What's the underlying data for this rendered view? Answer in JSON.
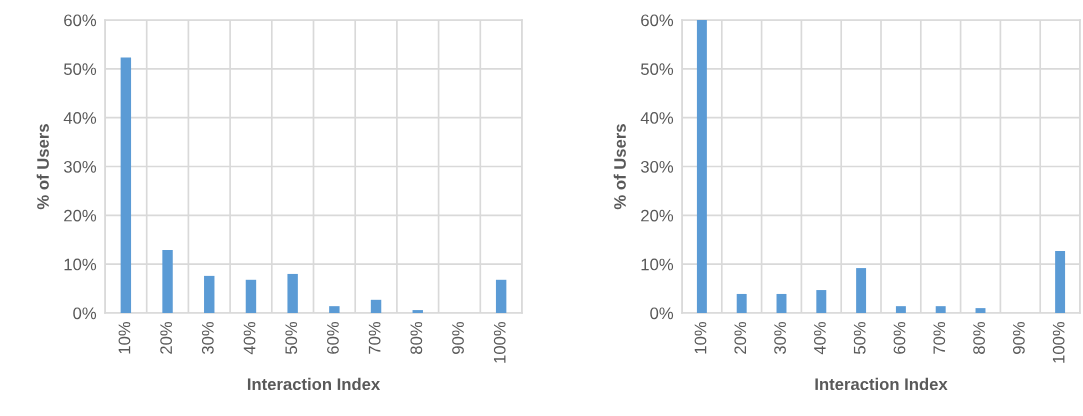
{
  "chart_data": [
    {
      "type": "bar",
      "xlabel": "Interaction Index",
      "ylabel": "% of Users",
      "categories": [
        "10%",
        "20%",
        "30%",
        "40%",
        "50%",
        "60%",
        "70%",
        "80%",
        "90%",
        "100%"
      ],
      "series": [
        {
          "color": "#5b9bd5",
          "values": [
            52.3,
            12.9,
            7.6,
            6.8,
            8.0,
            1.4,
            2.7,
            0.6,
            0,
            6.8
          ]
        }
      ],
      "ylim": [
        0,
        60
      ],
      "yticks": [
        {
          "value": 0,
          "label": "0%"
        },
        {
          "value": 10,
          "label": "10%"
        },
        {
          "value": 20,
          "label": "20%"
        },
        {
          "value": 30,
          "label": "30%"
        },
        {
          "value": 40,
          "label": "40%"
        },
        {
          "value": 50,
          "label": "50%"
        },
        {
          "value": 60,
          "label": "60%"
        }
      ],
      "grid": true,
      "legend": false
    },
    {
      "type": "bar",
      "xlabel": "Interaction Index",
      "ylabel": "% of Users",
      "categories": [
        "10%",
        "20%",
        "30%",
        "40%",
        "50%",
        "60%",
        "70%",
        "80%",
        "90%",
        "100%"
      ],
      "series": [
        {
          "color": "#5b9bd5",
          "values": [
            60,
            3.9,
            3.9,
            4.7,
            9.2,
            1.4,
            1.4,
            1.0,
            0,
            12.7
          ]
        }
      ],
      "ylim": [
        0,
        60
      ],
      "yticks": [
        {
          "value": 0,
          "label": "0%"
        },
        {
          "value": 10,
          "label": "10%"
        },
        {
          "value": 20,
          "label": "20%"
        },
        {
          "value": 30,
          "label": "30%"
        },
        {
          "value": 40,
          "label": "40%"
        },
        {
          "value": 50,
          "label": "50%"
        },
        {
          "value": 60,
          "label": "60%"
        }
      ],
      "grid": true,
      "legend": false
    }
  ]
}
